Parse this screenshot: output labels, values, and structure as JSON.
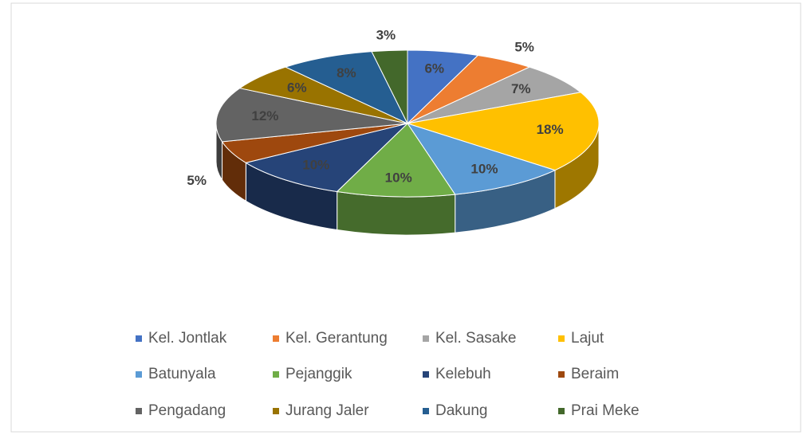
{
  "chart_data": {
    "type": "pie3d",
    "categories": [
      "Kel. Jontlak",
      "Kel. Gerantung",
      "Kel. Sasake",
      "Lajut",
      "Batunyala",
      "Pejanggik",
      "Kelebuh",
      "Beraim",
      "Pengadang",
      "Jurang Jaler",
      "Dakung",
      "Prai Meke"
    ],
    "values": [
      6,
      5,
      7,
      18,
      10,
      10,
      10,
      5,
      12,
      6,
      8,
      3
    ],
    "value_labels": [
      "6%",
      "5%",
      "7%",
      "18%",
      "10%",
      "10%",
      "10%",
      "5%",
      "12%",
      "6%",
      "8%",
      "3%"
    ],
    "colors": [
      "#4472c4",
      "#ed7d31",
      "#a5a5a5",
      "#ffc000",
      "#5b9bd5",
      "#70ad47",
      "#264478",
      "#9e480e",
      "#636363",
      "#997300",
      "#255e91",
      "#43682b"
    ],
    "legend": "bottom"
  }
}
